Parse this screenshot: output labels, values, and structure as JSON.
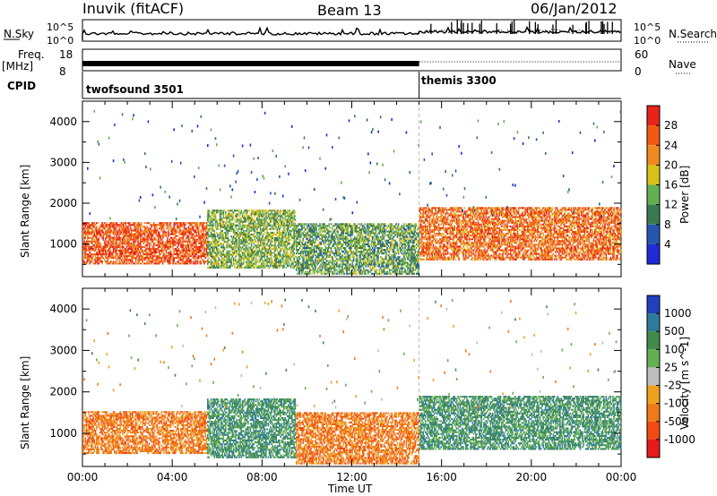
{
  "header": {
    "station": "Inuvik (fitACF)",
    "beam": "Beam 13",
    "date": "06/Jan/2012"
  },
  "top_panels": {
    "nsky_label": "N.Sky",
    "nsky_top": "10^5",
    "nsky_bottom": "10^0",
    "nsearch_label": "N.Search",
    "nsearch_top": "10^5",
    "nsearch_bottom": "10^0",
    "freq_label": "Freq.",
    "freq_unit": "[MHz]",
    "freq_top": "18",
    "freq_bottom": "8",
    "nave_label": "Nave",
    "nave_top": "60",
    "nave_bottom": "0",
    "cpid_label": "CPID",
    "cpid_modes": [
      {
        "name": "twofsound 3501",
        "start_hour": 0
      },
      {
        "name": "themis 3300",
        "start_hour": 15
      }
    ]
  },
  "chart_data": [
    {
      "type": "heatmap",
      "title": "Power",
      "ylabel": "Slant Range [km]",
      "xlabel": "",
      "x_ticks": [
        "00:00",
        "04:00",
        "08:00",
        "12:00",
        "16:00",
        "20:00",
        "00:00"
      ],
      "xlim_hours": [
        0,
        24
      ],
      "y_ticks": [
        "1000",
        "2000",
        "3000",
        "4000"
      ],
      "ylim": [
        200,
        4500
      ],
      "colorbar": {
        "label": "Power [dB]",
        "ticks": [
          "4",
          "8",
          "12",
          "16",
          "20",
          "24",
          "28"
        ],
        "range": [
          0,
          32
        ],
        "colors": [
          "#1f2bd6",
          "#2556b0",
          "#3a7a52",
          "#62b052",
          "#d8c21a",
          "#f08a20",
          "#f25a12",
          "#e8231a"
        ]
      },
      "features": [
        {
          "t0": 0,
          "t1": 5.5,
          "r0": 500,
          "r1": 1500,
          "level": 28
        },
        {
          "t0": 5.5,
          "t1": 9.5,
          "r0": 400,
          "r1": 1800,
          "level": 14
        },
        {
          "t0": 9.5,
          "t1": 15,
          "r0": 250,
          "r1": 1500,
          "level": 12
        },
        {
          "t0": 15,
          "t1": 24,
          "r0": 600,
          "r1": 1900,
          "level": 26
        }
      ]
    },
    {
      "type": "heatmap",
      "title": "Velocity",
      "ylabel": "Slant Range [km]",
      "xlabel": "Time UT",
      "x_ticks": [
        "00:00",
        "04:00",
        "08:00",
        "12:00",
        "16:00",
        "20:00",
        "00:00"
      ],
      "xlim_hours": [
        0,
        24
      ],
      "y_ticks": [
        "1000",
        "2000",
        "3000",
        "4000"
      ],
      "ylim": [
        200,
        4500
      ],
      "colorbar": {
        "label": "Velocity [m s^-1]",
        "ticks": [
          "1000",
          "500",
          "100",
          "25",
          "-25",
          "-100",
          "-500",
          "-1000"
        ],
        "colors": [
          "#2040c0",
          "#2f7a9a",
          "#3f8a4c",
          "#62b052",
          "#bdbdbd",
          "#f0a020",
          "#f07a18",
          "#f24a12",
          "#e81a1a"
        ]
      },
      "features": [
        {
          "t0": 0,
          "t1": 5.5,
          "r0": 500,
          "r1": 1500,
          "level": -200
        },
        {
          "t0": 5.5,
          "t1": 9.5,
          "r0": 400,
          "r1": 1800,
          "level": 150
        },
        {
          "t0": 9.5,
          "t1": 15,
          "r0": 250,
          "r1": 1500,
          "level": -300
        },
        {
          "t0": 15,
          "t1": 24,
          "r0": 600,
          "r1": 1900,
          "level": 200
        }
      ]
    }
  ]
}
